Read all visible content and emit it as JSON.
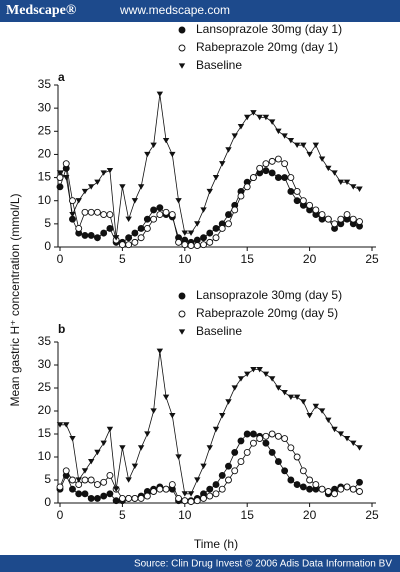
{
  "header": {
    "logo": "Medscape®",
    "url": "www.medscape.com"
  },
  "footer": "Source: Clin Drug Invest © 2006 Adis Data Information BV",
  "y_label": "Mean gastric H⁺ concentration (mmol/L)",
  "chart_data": [
    {
      "type": "line",
      "label": "a",
      "x": [
        0,
        0.5,
        1,
        1.5,
        2,
        2.5,
        3,
        3.5,
        4,
        4.5,
        5,
        5.5,
        6,
        6.5,
        7,
        7.5,
        8,
        8.5,
        9,
        9.5,
        10,
        10.5,
        11,
        11.5,
        12,
        12.5,
        13,
        13.5,
        14,
        14.5,
        15,
        15.5,
        16,
        16.5,
        17,
        17.5,
        18,
        18.5,
        19,
        19.5,
        20,
        20.5,
        21,
        21.5,
        22,
        22.5,
        23,
        23.5,
        24
      ],
      "xlim": [
        0,
        25
      ],
      "xticks": [
        0,
        5,
        10,
        15,
        20,
        25
      ],
      "ylim": [
        0,
        35
      ],
      "yticks": [
        0,
        5,
        10,
        15,
        20,
        25,
        30,
        35
      ],
      "series": [
        {
          "name": "Lansoprazole 30mg (day 1)",
          "color": "#111111",
          "marker": "circle-filled",
          "values": [
            13,
            17,
            6,
            3,
            2.5,
            2.5,
            2,
            3,
            4,
            1,
            1,
            2,
            3,
            4,
            6,
            8,
            8.5,
            7,
            6.5,
            2,
            1.5,
            1,
            1.5,
            2,
            3,
            4,
            5,
            7,
            9,
            12,
            14,
            15,
            16,
            16.5,
            16,
            15,
            15,
            12,
            10,
            9,
            8,
            7,
            6,
            6,
            4,
            5,
            6,
            5,
            4.5
          ]
        },
        {
          "name": "Rabeprazole 20mg (day 1)",
          "color": "#111111",
          "marker": "circle-open",
          "values": [
            15,
            18,
            10,
            4,
            7.5,
            7.5,
            7.5,
            7,
            7,
            1.5,
            0.5,
            0.5,
            1,
            2,
            4,
            6,
            7,
            7.5,
            7,
            1,
            0.5,
            0.3,
            0.3,
            0.5,
            1,
            2,
            4,
            5,
            8,
            11,
            13,
            15,
            17,
            18,
            18.5,
            19,
            18,
            15,
            12,
            10,
            9,
            8,
            7,
            6,
            5,
            6,
            7,
            6,
            5.5
          ]
        },
        {
          "name": "Baseline",
          "color": "#111111",
          "marker": "triangle-down",
          "values": [
            16,
            15,
            7,
            10,
            12,
            13,
            14,
            16,
            16.5,
            2,
            13,
            6,
            10,
            13,
            20,
            22,
            33,
            23,
            20,
            10,
            3,
            3,
            5,
            8,
            12,
            15,
            18,
            21,
            24,
            26,
            28,
            29,
            28,
            28,
            27,
            25,
            24,
            23,
            22,
            22,
            20,
            22,
            19,
            17,
            16,
            14,
            14,
            13,
            12.5
          ]
        }
      ]
    },
    {
      "type": "line",
      "label": "b",
      "xlabel": "Time (h)",
      "x": [
        0,
        0.5,
        1,
        1.5,
        2,
        2.5,
        3,
        3.5,
        4,
        4.5,
        5,
        5.5,
        6,
        6.5,
        7,
        7.5,
        8,
        8.5,
        9,
        9.5,
        10,
        10.5,
        11,
        11.5,
        12,
        12.5,
        13,
        13.5,
        14,
        14.5,
        15,
        15.5,
        16,
        16.5,
        17,
        17.5,
        18,
        18.5,
        19,
        19.5,
        20,
        20.5,
        21,
        21.5,
        22,
        22.5,
        23,
        23.5,
        24
      ],
      "xlim": [
        0,
        25
      ],
      "xticks": [
        0,
        5,
        10,
        15,
        20,
        25
      ],
      "ylim": [
        0,
        35
      ],
      "yticks": [
        0,
        5,
        10,
        15,
        20,
        25,
        30,
        35
      ],
      "series": [
        {
          "name": "Lansoprazole 30mg (day 5)",
          "color": "#111111",
          "marker": "circle-filled",
          "values": [
            3,
            6,
            3,
            2,
            2,
            1,
            1,
            1.5,
            2,
            0.5,
            0.5,
            1,
            1,
            1.5,
            2.5,
            3,
            3.5,
            3,
            3,
            0.5,
            0.5,
            0.5,
            1,
            2,
            3,
            4,
            6,
            8,
            11,
            13.5,
            15,
            15,
            14.5,
            13,
            11,
            9,
            7,
            5,
            4,
            3.5,
            3,
            3,
            3,
            2,
            3,
            3.5,
            3.5,
            3,
            4.5
          ]
        },
        {
          "name": "Rabeprazole 20mg (day 5)",
          "color": "#111111",
          "marker": "circle-open",
          "values": [
            3.5,
            7,
            5,
            4,
            5,
            5,
            4,
            4.5,
            6,
            3,
            1,
            1,
            1,
            1,
            1.5,
            2.5,
            3,
            3,
            4,
            1,
            0.5,
            0.3,
            0.5,
            1,
            1.5,
            2,
            3,
            5,
            7,
            9,
            11,
            13,
            14,
            14.5,
            15,
            14.5,
            14,
            12,
            10,
            7,
            5,
            4,
            3,
            2.5,
            2,
            3,
            3.5,
            3,
            2.5
          ]
        },
        {
          "name": "Baseline",
          "color": "#111111",
          "marker": "triangle-down",
          "values": [
            17,
            17,
            14,
            5,
            7,
            9,
            11,
            13,
            16,
            3,
            12,
            5,
            8,
            12,
            15,
            20,
            33,
            23,
            19,
            10,
            2,
            2,
            5,
            8,
            12,
            16,
            19,
            22,
            25,
            27,
            28,
            29,
            29,
            28,
            27,
            25,
            24,
            23,
            23,
            22,
            19,
            21,
            20,
            18,
            16,
            15,
            14,
            13,
            12
          ]
        }
      ]
    }
  ]
}
